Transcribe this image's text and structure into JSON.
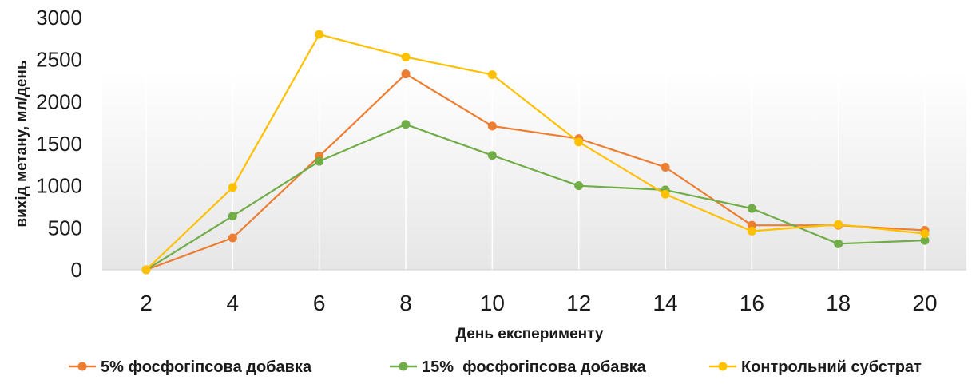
{
  "chart_data": {
    "type": "line",
    "xlabel": "День експерименту",
    "ylabel": "вихід метану, мл/день",
    "x": [
      2,
      4,
      6,
      8,
      10,
      12,
      14,
      16,
      18,
      20
    ],
    "xlim": [
      2,
      20
    ],
    "ylim": [
      0,
      3000
    ],
    "yticks": [
      0,
      500,
      1000,
      1500,
      2000,
      2500,
      3000
    ],
    "grid": "vertical",
    "legend_position": "bottom",
    "series": [
      {
        "name": "5% фосфогіпсова добавка",
        "color": "#ED7D31",
        "values": [
          0,
          380,
          1350,
          2330,
          1710,
          1560,
          1220,
          530,
          530,
          470
        ]
      },
      {
        "name": "15%  фосфогіпсова добавка",
        "color": "#70AD47",
        "values": [
          0,
          640,
          1290,
          1730,
          1360,
          1000,
          950,
          730,
          310,
          350
        ]
      },
      {
        "name": "Контрольний субстрат",
        "color": "#FFC000",
        "values": [
          0,
          980,
          2800,
          2530,
          2320,
          1520,
          900,
          460,
          540,
          430
        ]
      }
    ]
  }
}
